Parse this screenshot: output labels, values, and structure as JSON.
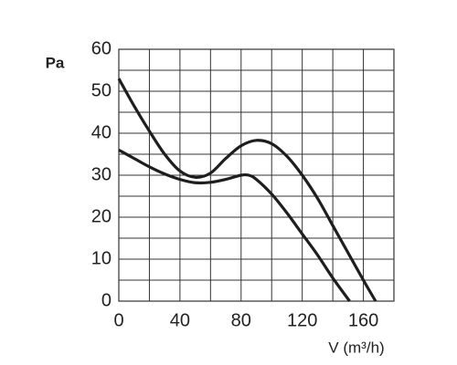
{
  "chart_data": {
    "type": "line",
    "x_label": "V (m³/h)",
    "y_label": "Pa",
    "xlim": [
      0,
      180
    ],
    "xticks": [
      0,
      40,
      80,
      120,
      160
    ],
    "ylim": [
      0,
      60
    ],
    "yticks": [
      0,
      10,
      20,
      30,
      40,
      50,
      60
    ],
    "grid": true,
    "minor_grid": true,
    "series": [
      {
        "color": "#1e1e1e",
        "x": [
          0,
          10,
          20,
          30,
          40,
          50,
          60,
          70,
          80,
          90,
          100,
          110,
          120,
          130,
          140,
          150,
          160,
          168
        ],
        "values": [
          53,
          46.5,
          40.5,
          35,
          31,
          29.5,
          30.5,
          34,
          37,
          38.3,
          37.5,
          34.5,
          30,
          24.5,
          18,
          11.5,
          5,
          0
        ]
      },
      {
        "color": "#1e1e1e",
        "x": [
          0,
          10,
          20,
          30,
          40,
          50,
          60,
          70,
          80,
          85,
          90,
          100,
          110,
          120,
          130,
          140,
          151
        ],
        "values": [
          36,
          34,
          32,
          30.3,
          29,
          28.2,
          28.3,
          29,
          30,
          30,
          29,
          25.5,
          21,
          16,
          11,
          5.5,
          0
        ]
      }
    ]
  }
}
